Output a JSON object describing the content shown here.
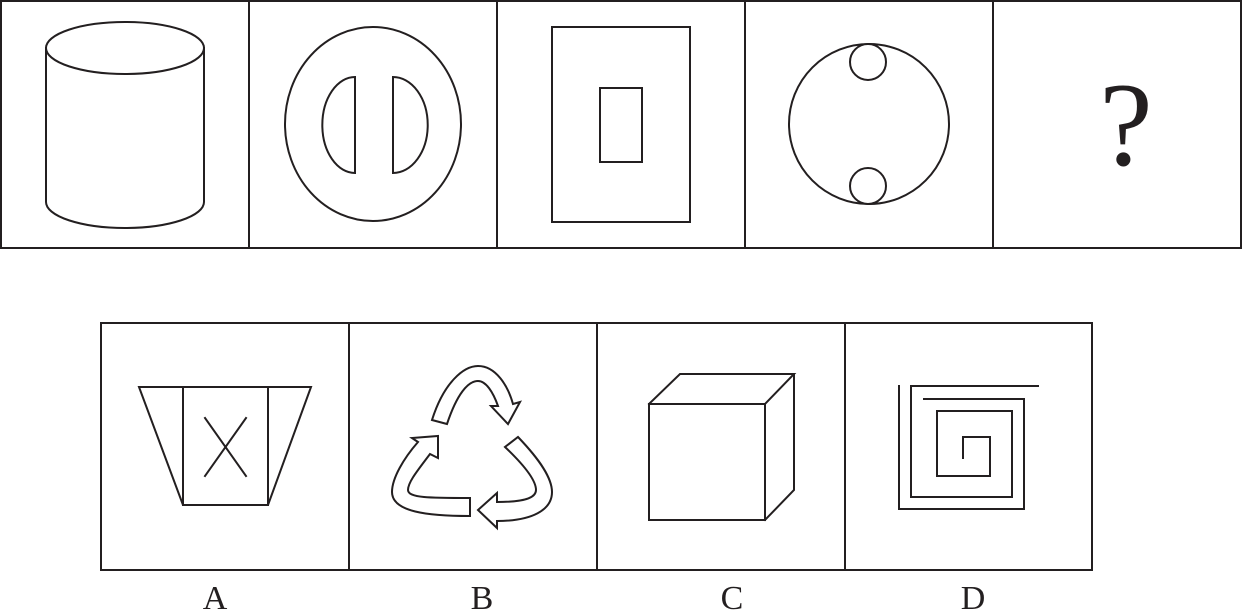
{
  "question": {
    "cells": [
      {
        "shape": "cylinder"
      },
      {
        "shape": "oval-with-two-half-ovals"
      },
      {
        "shape": "rectangle-in-rectangle"
      },
      {
        "shape": "circle-with-two-circles"
      },
      {
        "shape": "unknown",
        "text": "?"
      }
    ]
  },
  "options": [
    {
      "label": "A",
      "shape": "trapezoid-with-x-box"
    },
    {
      "label": "B",
      "shape": "recycle-arrows"
    },
    {
      "label": "C",
      "shape": "cube"
    },
    {
      "label": "D",
      "shape": "square-spiral"
    }
  ]
}
